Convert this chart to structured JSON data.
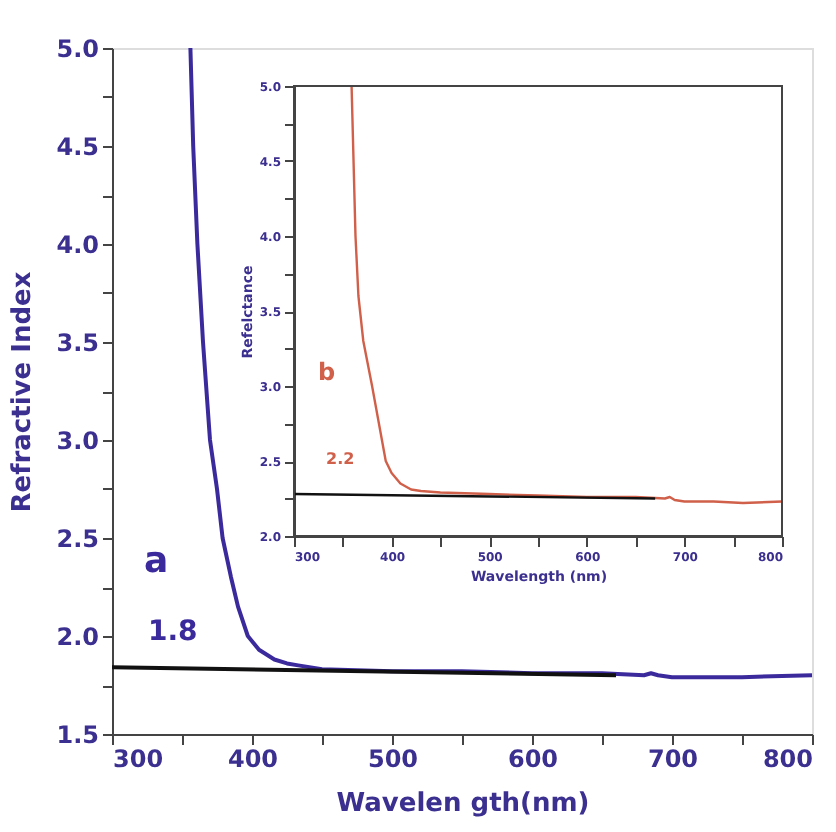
{
  "chart_data": [
    {
      "type": "line",
      "xlabel": "Wavelen gth(nm)",
      "ylabel": "Refractive Index",
      "xlim": [
        300,
        800
      ],
      "ylim": [
        1.5,
        5.0
      ],
      "xticks": [
        300,
        {
          "value": 350,
          "label": null
        },
        400,
        {
          "value": 450,
          "label": null
        },
        500,
        {
          "value": 550,
          "label": null
        },
        600,
        {
          "value": 650,
          "label": null
        },
        700,
        {
          "value": 750,
          "label": null
        },
        800
      ],
      "yticks": [
        {
          "value": 1.5,
          "label": "1.5"
        },
        {
          "value": 1.75,
          "label": null
        },
        {
          "value": 2.0,
          "label": "2.0"
        },
        {
          "value": 2.25,
          "label": null
        },
        {
          "value": 2.5,
          "label": "2.5"
        },
        {
          "value": 2.75,
          "label": null
        },
        {
          "value": 3.0,
          "label": "3.0"
        },
        {
          "value": 3.25,
          "label": null
        },
        {
          "value": 3.5,
          "label": "3.5"
        },
        {
          "value": 3.75,
          "label": null
        },
        {
          "value": 4.0,
          "label": "4.0"
        },
        {
          "value": 4.25,
          "label": null
        },
        {
          "value": 4.5,
          "label": "4.5"
        },
        {
          "value": 4.75,
          "label": null
        },
        {
          "value": 5.0,
          "label": "5.0"
        }
      ],
      "grid": false,
      "marker": "none",
      "line_style": "solid",
      "series": [
        {
          "color": "#3a2a9c",
          "x": [
            356,
            358,
            361,
            365,
            370,
            375,
            379,
            385,
            390,
            397,
            405,
            416,
            425,
            433,
            450,
            500,
            550,
            600,
            650,
            680,
            685,
            690,
            700,
            750,
            800
          ],
          "values": [
            5.0,
            4.5,
            4.0,
            3.5,
            3.0,
            2.75,
            2.5,
            2.3,
            2.15,
            2.0,
            1.93,
            1.88,
            1.86,
            1.85,
            1.83,
            1.82,
            1.82,
            1.81,
            1.81,
            1.8,
            1.81,
            1.8,
            1.79,
            1.79,
            1.8
          ]
        },
        {
          "color": "#111111",
          "x": [
            300,
            660
          ],
          "values": [
            1.84,
            1.8
          ]
        }
      ],
      "annotations": [
        "a",
        "1.8"
      ]
    },
    {
      "type": "line",
      "xlabel": "Wavelength (nm)",
      "ylabel": "Refelctance",
      "xlim": [
        300,
        800
      ],
      "ylim": [
        2.0,
        5.0
      ],
      "xticks": [
        300,
        {
          "value": 350,
          "label": null
        },
        400,
        {
          "value": 450,
          "label": null
        },
        500,
        {
          "value": 550,
          "label": null
        },
        600,
        {
          "value": 650,
          "label": null
        },
        700,
        {
          "value": 750,
          "label": null
        },
        800
      ],
      "yticks": [
        {
          "value": 2.0,
          "label": "2.0"
        },
        {
          "value": 2.25,
          "label": null
        },
        {
          "value": 2.5,
          "label": "2.5"
        },
        {
          "value": 2.75,
          "label": null
        },
        {
          "value": 3.0,
          "label": "3.0"
        },
        {
          "value": 3.25,
          "label": null
        },
        {
          "value": 3.5,
          "label": "3.5"
        },
        {
          "value": 3.75,
          "label": null
        },
        {
          "value": 4.0,
          "label": "4.0"
        },
        {
          "value": 4.25,
          "label": null
        },
        {
          "value": 4.5,
          "label": "4.5"
        },
        {
          "value": 4.75,
          "label": null
        },
        {
          "value": 5.0,
          "label": "5.0"
        }
      ],
      "grid": false,
      "marker": "none",
      "line_style": "solid",
      "series": [
        {
          "color": "#d0604a",
          "x": [
            359,
            361,
            363,
            366,
            371,
            380,
            387,
            394,
            400,
            409,
            420,
            430,
            450,
            500,
            550,
            600,
            650,
            680,
            685,
            690,
            700,
            730,
            760,
            800
          ],
          "values": [
            5.0,
            4.5,
            4.0,
            3.6,
            3.3,
            3.0,
            2.75,
            2.5,
            2.42,
            2.35,
            2.31,
            2.3,
            2.29,
            2.28,
            2.27,
            2.26,
            2.26,
            2.25,
            2.26,
            2.24,
            2.23,
            2.23,
            2.22,
            2.23
          ]
        },
        {
          "color": "#111111",
          "x": [
            300,
            670
          ],
          "values": [
            2.28,
            2.25
          ]
        }
      ],
      "annotations": [
        "b",
        "2.2"
      ]
    }
  ]
}
